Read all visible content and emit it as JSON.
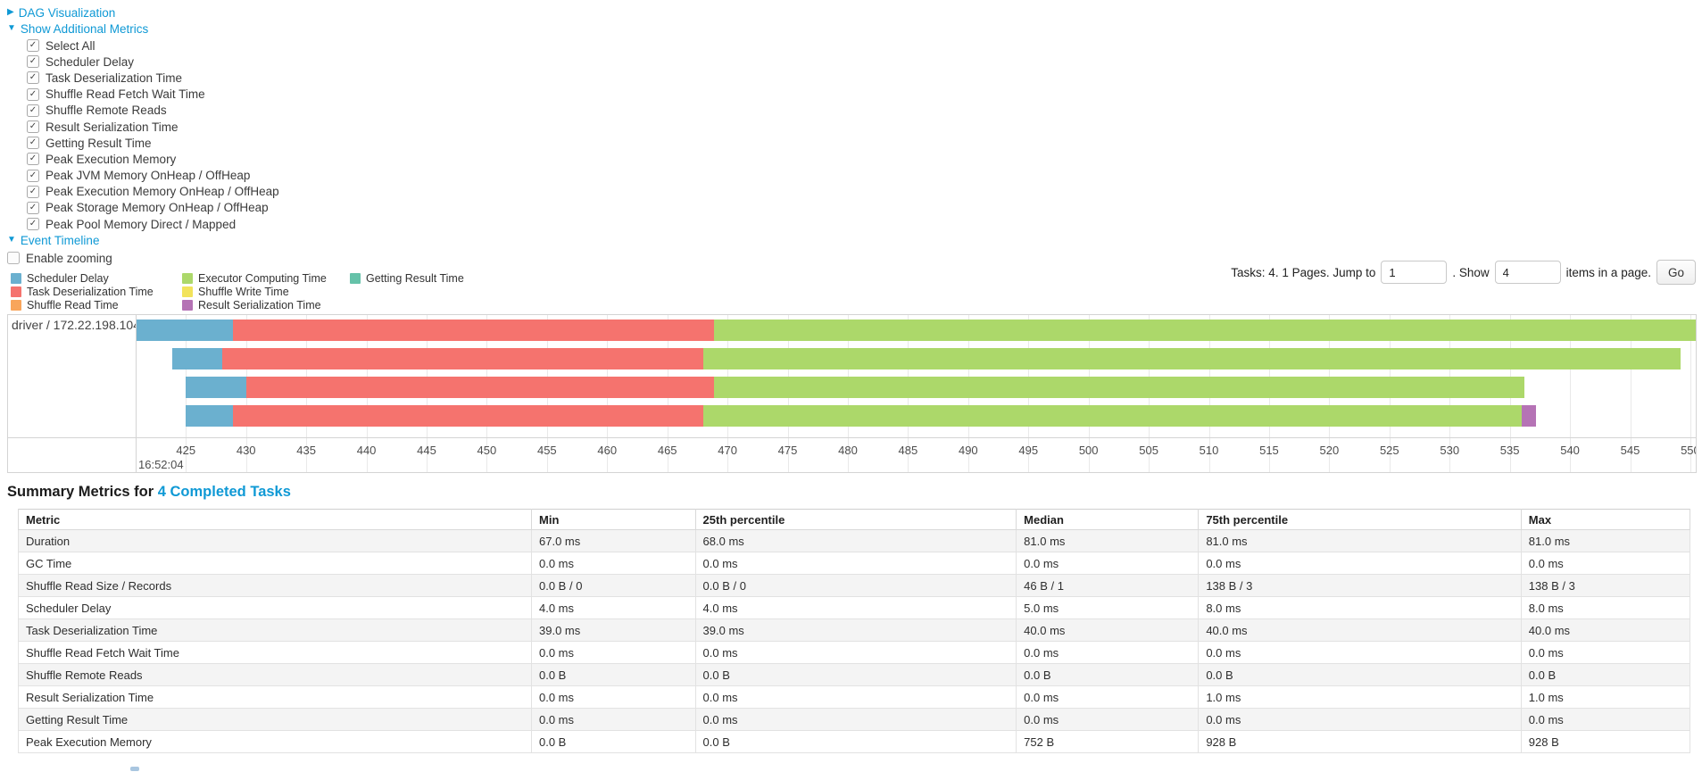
{
  "controls": {
    "dag": {
      "label": "DAG Visualization",
      "arrow": "▶",
      "expanded": false
    },
    "metrics_toggle": {
      "label": "Show Additional Metrics",
      "arrow": "▼",
      "expanded": true
    },
    "metric_options": [
      {
        "label": "Select All",
        "checked": true
      },
      {
        "label": "Scheduler Delay",
        "checked": true
      },
      {
        "label": "Task Deserialization Time",
        "checked": true
      },
      {
        "label": "Shuffle Read Fetch Wait Time",
        "checked": true
      },
      {
        "label": "Shuffle Remote Reads",
        "checked": true
      },
      {
        "label": "Result Serialization Time",
        "checked": true
      },
      {
        "label": "Getting Result Time",
        "checked": true
      },
      {
        "label": "Peak Execution Memory",
        "checked": true
      },
      {
        "label": "Peak JVM Memory OnHeap / OffHeap",
        "checked": true
      },
      {
        "label": "Peak Execution Memory OnHeap / OffHeap",
        "checked": true
      },
      {
        "label": "Peak Storage Memory OnHeap / OffHeap",
        "checked": true
      },
      {
        "label": "Peak Pool Memory Direct / Mapped",
        "checked": true
      }
    ],
    "event_timeline": {
      "label": "Event Timeline",
      "arrow": "▼",
      "expanded": true
    },
    "enable_zooming": {
      "label": "Enable zooming",
      "checked": false
    }
  },
  "legend": {
    "items": [
      {
        "label": "Scheduler Delay",
        "metric": "scheduler_delay"
      },
      {
        "label": "Task Deserialization Time",
        "metric": "task_deserialization"
      },
      {
        "label": "Shuffle Read Time",
        "metric": "shuffle_read"
      },
      {
        "label": "Executor Computing Time",
        "metric": "executor_computing"
      },
      {
        "label": "Shuffle Write Time",
        "metric": "shuffle_write"
      },
      {
        "label": "Result Serialization Time",
        "metric": "result_serialization"
      },
      {
        "label": "Getting Result Time",
        "metric": "getting_result"
      }
    ]
  },
  "pagination": {
    "text_jump": "Tasks: 4. 1 Pages. Jump to",
    "jump_value": "1",
    "text_show": ". Show",
    "show_value": "4",
    "text_items": "items in a page.",
    "go_label": "Go"
  },
  "chart_data": {
    "type": "timeline",
    "group_label": "driver / 172.22.198.104",
    "axis": {
      "min": 420.9,
      "max": 550.45,
      "tick_step_ms": 5,
      "ticks": [
        425,
        430,
        435,
        440,
        445,
        450,
        455,
        460,
        465,
        470,
        475,
        480,
        485,
        490,
        495,
        500,
        505,
        510,
        515,
        520,
        525,
        530,
        535,
        540,
        545,
        550
      ],
      "major_label": "16:52:04"
    },
    "colors": {
      "scheduler_delay": "#6BB0CF",
      "task_deserialization": "#F5736E",
      "shuffle_read": "#F8A55B",
      "executor_computing": "#ACD86A",
      "shuffle_write": "#F2E35B",
      "result_serialization": "#B573B5",
      "getting_result": "#65C2A9"
    },
    "tasks": [
      {
        "segments": [
          {
            "metric": "scheduler_delay",
            "start": 420.9,
            "end": 428.9
          },
          {
            "metric": "task_deserialization",
            "start": 428.9,
            "end": 468.9
          },
          {
            "metric": "executor_computing",
            "start": 468.9,
            "end": 550.45
          }
        ]
      },
      {
        "segments": [
          {
            "metric": "scheduler_delay",
            "start": 423.9,
            "end": 428.0
          },
          {
            "metric": "task_deserialization",
            "start": 428.0,
            "end": 468.0
          },
          {
            "metric": "executor_computing",
            "start": 468.0,
            "end": 549.2
          }
        ]
      },
      {
        "segments": [
          {
            "metric": "scheduler_delay",
            "start": 425.0,
            "end": 430.0
          },
          {
            "metric": "task_deserialization",
            "start": 430.0,
            "end": 468.9
          },
          {
            "metric": "executor_computing",
            "start": 468.9,
            "end": 536.2
          }
        ]
      },
      {
        "segments": [
          {
            "metric": "scheduler_delay",
            "start": 425.0,
            "end": 428.9
          },
          {
            "metric": "task_deserialization",
            "start": 428.9,
            "end": 468.0
          },
          {
            "metric": "executor_computing",
            "start": 468.0,
            "end": 536.0
          },
          {
            "metric": "result_serialization",
            "start": 536.0,
            "end": 537.2
          }
        ]
      }
    ]
  },
  "summary": {
    "heading_prefix": "Summary Metrics for ",
    "heading_link": "4 Completed Tasks",
    "table": {
      "headers": [
        "Metric",
        "Min",
        "25th percentile",
        "Median",
        "75th percentile",
        "Max"
      ],
      "rows": [
        {
          "metric": "Duration",
          "values": [
            "67.0 ms",
            "68.0 ms",
            "81.0 ms",
            "81.0 ms",
            "81.0 ms"
          ]
        },
        {
          "metric": "GC Time",
          "values": [
            "0.0 ms",
            "0.0 ms",
            "0.0 ms",
            "0.0 ms",
            "0.0 ms"
          ]
        },
        {
          "metric": "Shuffle Read Size / Records",
          "values": [
            "0.0 B / 0",
            "0.0 B / 0",
            "46 B / 1",
            "138 B / 3",
            "138 B / 3"
          ]
        },
        {
          "metric": "Scheduler Delay",
          "values": [
            "4.0 ms",
            "4.0 ms",
            "5.0 ms",
            "8.0 ms",
            "8.0 ms"
          ]
        },
        {
          "metric": "Task Deserialization Time",
          "values": [
            "39.0 ms",
            "39.0 ms",
            "40.0 ms",
            "40.0 ms",
            "40.0 ms"
          ]
        },
        {
          "metric": "Shuffle Read Fetch Wait Time",
          "values": [
            "0.0 ms",
            "0.0 ms",
            "0.0 ms",
            "0.0 ms",
            "0.0 ms"
          ]
        },
        {
          "metric": "Shuffle Remote Reads",
          "values": [
            "0.0 B",
            "0.0 B",
            "0.0 B",
            "0.0 B",
            "0.0 B"
          ]
        },
        {
          "metric": "Result Serialization Time",
          "values": [
            "0.0 ms",
            "0.0 ms",
            "0.0 ms",
            "1.0 ms",
            "1.0 ms"
          ]
        },
        {
          "metric": "Getting Result Time",
          "values": [
            "0.0 ms",
            "0.0 ms",
            "0.0 ms",
            "0.0 ms",
            "0.0 ms"
          ]
        },
        {
          "metric": "Peak Execution Memory",
          "values": [
            "0.0 B",
            "0.0 B",
            "752 B",
            "928 B",
            "928 B"
          ]
        }
      ]
    }
  }
}
